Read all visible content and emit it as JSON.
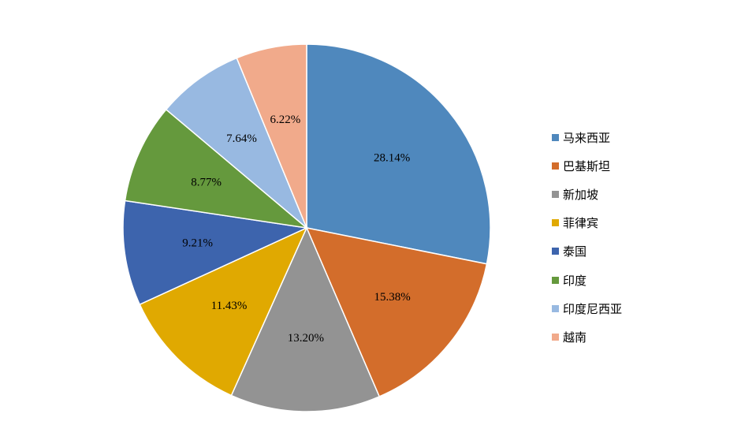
{
  "chart_data": {
    "type": "pie",
    "legend_position": "right",
    "series": [
      {
        "label": "马来西亚",
        "value": 28.14,
        "display": "28.14%",
        "color": "#4f88bd"
      },
      {
        "label": "巴基斯坦",
        "value": 15.38,
        "display": "15.38%",
        "color": "#d36d2b"
      },
      {
        "label": "新加坡",
        "value": 13.2,
        "display": "13.20%",
        "color": "#939393"
      },
      {
        "label": "菲律宾",
        "value": 11.43,
        "display": "11.43%",
        "color": "#e0a901"
      },
      {
        "label": "泰国",
        "value": 9.21,
        "display": "9.21%",
        "color": "#3d64ad"
      },
      {
        "label": "印度",
        "value": 8.77,
        "display": "8.77%",
        "color": "#65993d"
      },
      {
        "label": "印度尼西亚",
        "value": 7.64,
        "display": "7.64%",
        "color": "#98b9e1"
      },
      {
        "label": "越南",
        "value": 6.22,
        "display": "6.22%",
        "color": "#f1aa8b"
      }
    ]
  }
}
